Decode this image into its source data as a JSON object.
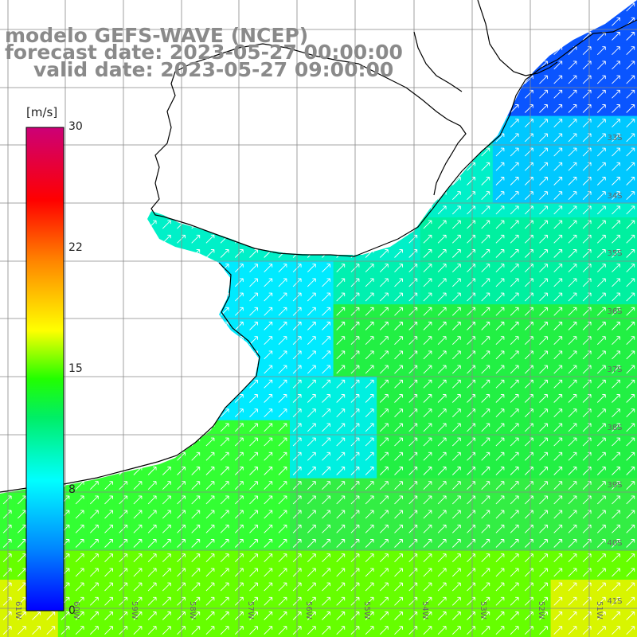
{
  "title": {
    "line1": "modelo GEFS-WAVE (NCEP)",
    "line2": "forecast date: 2023-05-27 00:00:00",
    "line3": "valid date: 2023-05-27 09:00:00"
  },
  "colorbar": {
    "units": "[m/s]",
    "ticks": [
      "30",
      "22",
      "15",
      "8",
      "0"
    ],
    "min": 0,
    "max": 30,
    "colors": [
      "#0000ff",
      "#0088ff",
      "#00ffff",
      "#00ff00",
      "#ffff00",
      "#ff8800",
      "#ff0000",
      "#cc0077"
    ]
  },
  "map": {
    "lon_labels": [
      "61W",
      "60W",
      "59W",
      "58W",
      "57W",
      "56W",
      "55W",
      "54W",
      "53W",
      "52W",
      "51W"
    ],
    "lat_labels": [
      "33S",
      "34S",
      "35S",
      "36S",
      "37S",
      "38S",
      "39S",
      "40S",
      "41S"
    ],
    "land_color": "#ffffff",
    "coast_color": "#000000",
    "grid_color": "#888888",
    "arrow_color": "#ffffff"
  }
}
